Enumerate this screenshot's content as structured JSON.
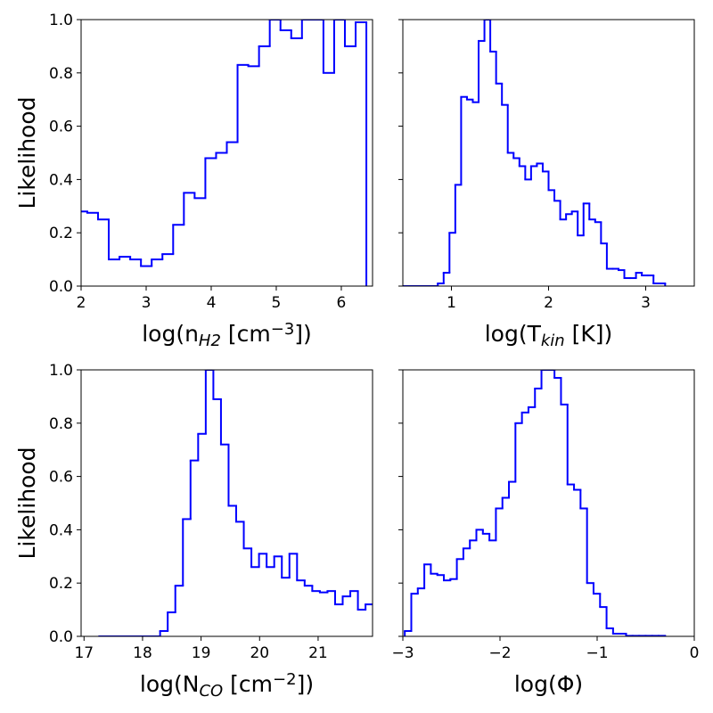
{
  "chart_data": [
    {
      "type": "step-histogram",
      "color": "#0000ff",
      "xlabel": [
        {
          "text": "log(n"
        },
        {
          "text": "H2",
          "style": "sub"
        },
        {
          "text": " [cm"
        },
        {
          "text": "−3",
          "style": "sup"
        },
        {
          "text": "])"
        }
      ],
      "ylabel": "Likelihood",
      "bins": [
        1.93,
        2.095,
        2.26,
        2.425,
        2.59,
        2.755,
        2.92,
        3.085,
        3.25,
        3.415,
        3.58,
        3.745,
        3.91,
        4.075,
        4.24,
        4.405,
        4.57,
        4.735,
        4.9,
        5.065,
        5.23,
        5.395,
        5.56,
        5.725,
        5.89,
        6.055,
        6.22,
        6.385
      ],
      "values": [
        0.28,
        0.275,
        0.25,
        0.1,
        0.11,
        0.1,
        0.075,
        0.1,
        0.12,
        0.23,
        0.35,
        0.33,
        0.48,
        0.5,
        0.54,
        0.83,
        0.825,
        0.9,
        1.0,
        0.96,
        0.93,
        1.0,
        1.0,
        0.8,
        1.0,
        0.9,
        0.99
      ],
      "xlim": [
        2,
        6.48
      ],
      "xticks": [
        2,
        3,
        4,
        5,
        6
      ],
      "ylim": [
        0,
        1
      ],
      "yticks": [
        {
          "value": 0,
          "label": "0.0"
        },
        0.2,
        0.4,
        0.6,
        0.8,
        {
          "value": 1,
          "label": "1.0"
        }
      ],
      "show_ytick_labels": true
    },
    {
      "type": "step-histogram",
      "color": "#0000ff",
      "xlabel": [
        {
          "text": "log(T"
        },
        {
          "text": "kin",
          "style": "sub"
        },
        {
          "text": " [K])"
        }
      ],
      "bins": [
        0.5,
        0.56,
        0.62,
        0.68,
        0.74,
        0.8,
        0.86,
        0.92,
        0.98,
        1.04,
        1.1,
        1.16,
        1.22,
        1.28,
        1.34,
        1.4,
        1.46,
        1.52,
        1.58,
        1.64,
        1.7,
        1.76,
        1.82,
        1.88,
        1.94,
        2.0,
        2.06,
        2.12,
        2.18,
        2.24,
        2.3,
        2.36,
        2.42,
        2.48,
        2.54,
        2.6,
        2.66,
        2.72,
        2.78,
        2.84,
        2.9,
        2.96,
        3.02,
        3.08,
        3.14,
        3.2
      ],
      "values": [
        0,
        0,
        0,
        0,
        0,
        0,
        0.01,
        0.05,
        0.2,
        0.38,
        0.71,
        0.7,
        0.69,
        0.92,
        1.0,
        0.88,
        0.76,
        0.68,
        0.5,
        0.48,
        0.45,
        0.4,
        0.45,
        0.46,
        0.43,
        0.36,
        0.32,
        0.25,
        0.27,
        0.28,
        0.19,
        0.31,
        0.25,
        0.24,
        0.16,
        0.065,
        0.065,
        0.06,
        0.03,
        0.03,
        0.05,
        0.04,
        0.04,
        0.01,
        0.01
      ],
      "xlim": [
        0.5,
        3.5
      ],
      "xticks": [
        1,
        2,
        3
      ],
      "ylim": [
        0,
        1
      ],
      "yticks": [
        0,
        0.2,
        0.4,
        0.6,
        0.8,
        1
      ],
      "show_ytick_labels": false
    },
    {
      "type": "step-histogram",
      "color": "#0000ff",
      "xlabel": [
        {
          "text": "log(N"
        },
        {
          "text": "CO",
          "style": "sub"
        },
        {
          "text": " [cm"
        },
        {
          "text": "−2",
          "style": "sup"
        },
        {
          "text": "])"
        }
      ],
      "ylabel": "Likelihood",
      "bins": [
        17.26,
        17.39,
        17.52,
        17.65,
        17.78,
        17.91,
        18.04,
        18.17,
        18.3,
        18.43,
        18.56,
        18.69,
        18.82,
        18.95,
        19.08,
        19.21,
        19.34,
        19.47,
        19.6,
        19.73,
        19.86,
        19.99,
        20.12,
        20.25,
        20.38,
        20.51,
        20.64,
        20.77,
        20.9,
        21.03,
        21.16,
        21.29,
        21.42,
        21.55,
        21.68,
        21.81,
        21.94
      ],
      "values": [
        0,
        0,
        0,
        0,
        0,
        0,
        0,
        0,
        0.02,
        0.09,
        0.19,
        0.44,
        0.66,
        0.76,
        1.0,
        0.89,
        0.72,
        0.49,
        0.43,
        0.33,
        0.26,
        0.31,
        0.26,
        0.3,
        0.22,
        0.31,
        0.21,
        0.19,
        0.17,
        0.165,
        0.17,
        0.12,
        0.15,
        0.17,
        0.1,
        0.12
      ],
      "xlim": [
        16.95,
        21.93
      ],
      "xticks": [
        17,
        18,
        19,
        20,
        21
      ],
      "ylim": [
        0,
        1
      ],
      "yticks": [
        {
          "value": 0,
          "label": "0.0"
        },
        0.2,
        0.4,
        0.6,
        0.8,
        {
          "value": 1,
          "label": "1.0"
        }
      ],
      "show_ytick_labels": true
    },
    {
      "type": "step-histogram",
      "color": "#0000ff",
      "xlabel": [
        {
          "text": "log(Φ)"
        }
      ],
      "bins": [
        -2.98,
        -2.913,
        -2.846,
        -2.779,
        -2.712,
        -2.645,
        -2.578,
        -2.511,
        -2.444,
        -2.377,
        -2.31,
        -2.243,
        -2.176,
        -2.109,
        -2.042,
        -1.975,
        -1.908,
        -1.841,
        -1.774,
        -1.707,
        -1.64,
        -1.573,
        -1.506,
        -1.439,
        -1.372,
        -1.305,
        -1.238,
        -1.171,
        -1.104,
        -1.037,
        -0.97,
        -0.903,
        -0.836,
        -0.769,
        -0.702,
        -0.635,
        -0.568,
        -0.501,
        -0.434,
        -0.367,
        -0.3
      ],
      "values": [
        0.02,
        0.16,
        0.18,
        0.27,
        0.235,
        0.23,
        0.21,
        0.215,
        0.29,
        0.33,
        0.36,
        0.4,
        0.385,
        0.36,
        0.48,
        0.52,
        0.58,
        0.8,
        0.84,
        0.86,
        0.93,
        1.0,
        1.0,
        0.97,
        0.87,
        0.57,
        0.55,
        0.48,
        0.2,
        0.16,
        0.11,
        0.03,
        0.01,
        0.01,
        0.002,
        0.002,
        0.002,
        0.002,
        0.002,
        0.002
      ],
      "xlim": [
        -3,
        0
      ],
      "xticks": [
        {
          "value": -3,
          "label": "−3"
        },
        {
          "value": -2,
          "label": "−2"
        },
        {
          "value": -1,
          "label": "−1"
        },
        0
      ],
      "ylim": [
        0,
        1
      ],
      "yticks": [
        0,
        0.2,
        0.4,
        0.6,
        0.8,
        1
      ],
      "show_ytick_labels": false
    }
  ]
}
